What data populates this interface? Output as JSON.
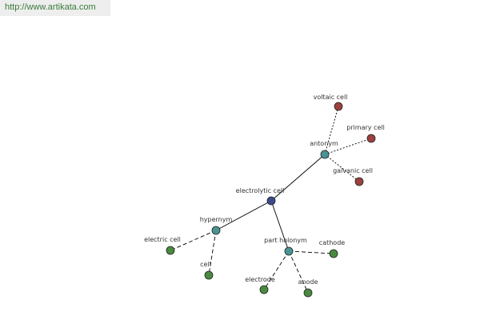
{
  "header": {
    "url": "http://www.artikata.com"
  },
  "nodes": [
    {
      "label": "electrolytic cell"
    },
    {
      "label": "antonym"
    },
    {
      "label": "hypernym"
    },
    {
      "label": "part holonym"
    },
    {
      "label": "voltaic cell"
    },
    {
      "label": "primary cell"
    },
    {
      "label": "galvanic cell"
    },
    {
      "label": "electric cell"
    },
    {
      "label": "cell"
    },
    {
      "label": "electrode"
    },
    {
      "label": "anode"
    },
    {
      "label": "cathode"
    }
  ]
}
